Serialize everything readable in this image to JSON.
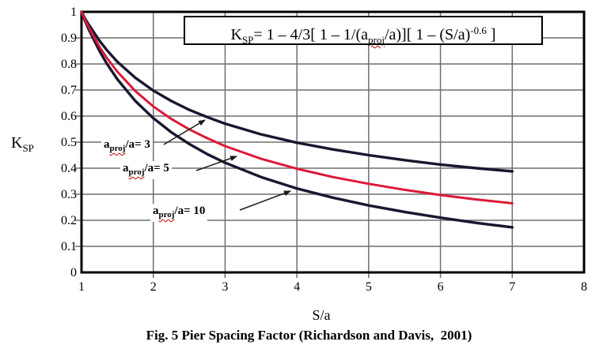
{
  "figure": {
    "caption": "Fig. 5 Pier Spacing Factor (Richardson and Davis,  2001)",
    "formula": {
      "k": "K",
      "k_sub": "SP",
      "eq": "= 1 – 4/3[ 1 – 1/(a",
      "proj_sub": "proj",
      "mid": "/a)][ 1 – (S/a)",
      "exp": "-0.6",
      "end": " ]"
    },
    "y_axis": {
      "label_main": "K",
      "label_sub": "SP",
      "ticks": [
        "1",
        "0.9",
        "0.8",
        "0.7",
        "0.6",
        "0.5",
        "0.4",
        "0.3",
        "0.2",
        "0.1",
        "0"
      ]
    },
    "x_axis": {
      "label": "S/a",
      "ticks": [
        "1",
        "2",
        "3",
        "4",
        "5",
        "6",
        "7",
        "8"
      ]
    }
  },
  "chart_data": {
    "type": "line",
    "title": "Fig. 5 Pier Spacing Factor (Richardson and Davis, 2001)",
    "xlabel": "S/a",
    "ylabel": "KSP",
    "xlim": [
      1,
      8
    ],
    "ylim": [
      0,
      1
    ],
    "grid": true,
    "legend_position": "inline-annotations",
    "formula_annotation": "KSP = 1 – 4/3[ 1 – 1/(aproj/a)][ 1 – (S/a)^-0.6 ]",
    "x": [
      1,
      1.05,
      1.1,
      1.25,
      1.35,
      1.5,
      1.75,
      2,
      2.25,
      2.5,
      2.75,
      3,
      3.5,
      4,
      4.5,
      5,
      5.5,
      6,
      6.5,
      7
    ],
    "series": [
      {
        "name": "aproj/a= 3",
        "label": {
          "prefix": "a",
          "sub": "proj",
          "mid": "/a= ",
          "value": "3"
        },
        "color": "#17172f",
        "values": [
          1,
          0.974,
          0.951,
          0.889,
          0.854,
          0.808,
          0.747,
          0.698,
          0.658,
          0.624,
          0.596,
          0.571,
          0.53,
          0.498,
          0.472,
          0.45,
          0.431,
          0.414,
          0.4,
          0.388
        ]
      },
      {
        "name": "aproj/a= 5",
        "label": {
          "prefix": "a",
          "sub": "proj",
          "mid": "/a= ",
          "value": "5"
        },
        "color": "#dc1a38",
        "values": [
          1,
          0.969,
          0.941,
          0.866,
          0.824,
          0.77,
          0.696,
          0.637,
          0.589,
          0.549,
          0.515,
          0.485,
          0.436,
          0.398,
          0.366,
          0.34,
          0.317,
          0.297,
          0.28,
          0.265
        ]
      },
      {
        "name": "aproj/a= 10",
        "label": {
          "prefix": "a",
          "sub": "proj",
          "mid": "/a= ",
          "value": "10"
        },
        "color": "#17172f",
        "values": [
          1,
          0.965,
          0.933,
          0.85,
          0.802,
          0.741,
          0.658,
          0.592,
          0.538,
          0.493,
          0.454,
          0.421,
          0.366,
          0.322,
          0.287,
          0.257,
          0.232,
          0.21,
          0.19,
          0.173
        ]
      }
    ],
    "colors": {
      "curve_dark": "#17172f",
      "curve_red": "#dc1a38",
      "grid": "#6f6f6f",
      "border": "#000000",
      "spellcheck_underline": "#c40000"
    }
  }
}
